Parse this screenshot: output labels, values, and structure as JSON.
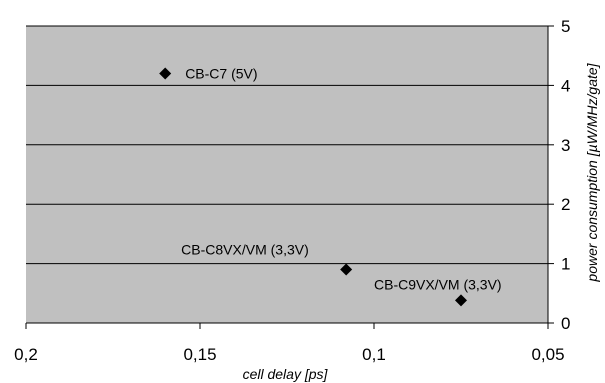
{
  "chart_data": {
    "type": "scatter",
    "xlabel": "cell delay [ps]",
    "ylabel": "power consumption [µW/MHz/gate]",
    "xlim": [
      0.2,
      0.05
    ],
    "ylim": [
      0,
      5
    ],
    "x_reversed": true,
    "y_axis_position": "right",
    "grid": true,
    "plot_background": "#c0c0c0",
    "marker_color": "#000000",
    "x_ticks": [
      0.2,
      0.15,
      0.1,
      0.05
    ],
    "x_tick_labels": [
      "0,2",
      "0,15",
      "0,1",
      "0,05"
    ],
    "y_ticks": [
      0,
      1,
      2,
      3,
      4,
      5
    ],
    "y_tick_labels": [
      "0",
      "1",
      "2",
      "3",
      "4",
      "5"
    ],
    "points": [
      {
        "x": 0.16,
        "y": 4.2,
        "label": "CB-C7 (5V)",
        "label_pos": "right"
      },
      {
        "x": 0.108,
        "y": 0.9,
        "label": "CB-C8VX/VM (3,3V)",
        "label_pos": "above-left"
      },
      {
        "x": 0.075,
        "y": 0.38,
        "label": "CB-C9VX/VM (3,3V)",
        "label_pos": "above"
      }
    ]
  }
}
